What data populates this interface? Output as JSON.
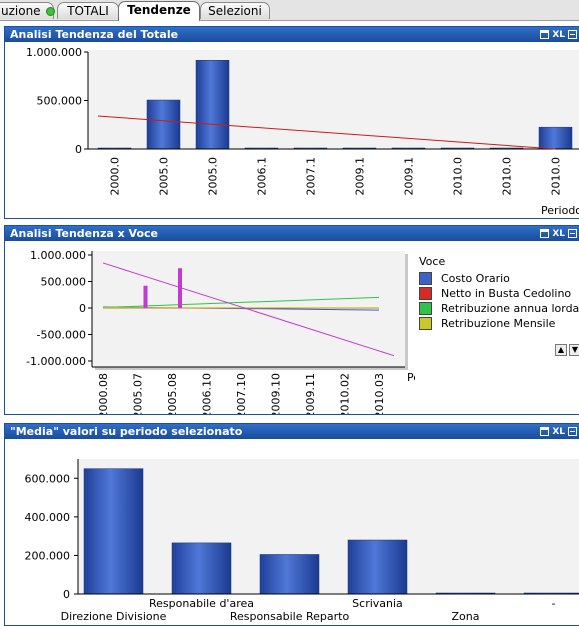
{
  "tabs": [
    {
      "label": "uzione",
      "status": "green"
    },
    {
      "label": "TOTALI"
    },
    {
      "label": "Tendenze",
      "active": true
    },
    {
      "label": "Selezioni"
    }
  ],
  "caption_icons": {
    "print": "print-icon",
    "xl": "XL",
    "minimize": "minimize-icon"
  },
  "panel1": {
    "title": "Analisi Tendenza del Totale",
    "chart_data": {
      "type": "bar",
      "categories": [
        "2000.0",
        "2005.0",
        "2005.0",
        "2006.1",
        "2007.1",
        "2009.1",
        "2009.1",
        "2010.0",
        "2010.0",
        "2010.0"
      ],
      "values": [
        5000,
        505000,
        915000,
        3000,
        3000,
        3000,
        3000,
        3000,
        3000,
        225000
      ],
      "trend": [
        340000,
        0
      ],
      "xlabel": "Periodo",
      "yticks": [
        "1.000.000",
        "500.000",
        "0"
      ],
      "ylim": [
        0,
        1000000
      ],
      "colors": {
        "bar": "#3b63c4",
        "trend": "#d01818"
      }
    }
  },
  "panel2": {
    "title": "Analisi Tendenza x Voce",
    "chart_data": {
      "type": "line",
      "x": [
        "2000.08",
        "2005.07",
        "2005.08",
        "2006.10",
        "2007.10",
        "2009.10",
        "2009.11",
        "2010.02",
        "2010.03"
      ],
      "xlabel": "Periodo",
      "yticks": [
        "1.000.000",
        "500.000",
        "0",
        "-500.000",
        "-1.000.000"
      ],
      "ylim": [
        -1000000,
        1000000
      ],
      "legend_title": "Voce",
      "series": [
        {
          "name": "Costo Orario",
          "color": "#3b63c4"
        },
        {
          "name": "Netto in Busta Cedolino",
          "color": "#d82828"
        },
        {
          "name": "Retribuzione annua lorda",
          "color": "#2ec44a"
        },
        {
          "name": "Retribuzione Mensile",
          "color": "#c8c82a"
        }
      ],
      "trend_color": "#c23bd0",
      "trend": [
        850000,
        -900000
      ],
      "spikes": [
        {
          "index": 1,
          "value": 420000
        },
        {
          "index": 2,
          "value": 750000
        }
      ]
    }
  },
  "panel3": {
    "title": "\"Media\" valori su periodo selezionato",
    "chart_data": {
      "type": "bar",
      "categories": [
        "Direzione Divisione",
        "Responabile d'area",
        "Responsabile Reparto",
        "Scrivania",
        "Zona",
        "-"
      ],
      "values": [
        650000,
        265000,
        205000,
        280000,
        5000,
        5000
      ],
      "yticks": [
        "600.000",
        "400.000",
        "200.000",
        "0"
      ],
      "ylim": [
        0,
        700000
      ],
      "colors": {
        "bar": "#3b63c4"
      }
    }
  }
}
